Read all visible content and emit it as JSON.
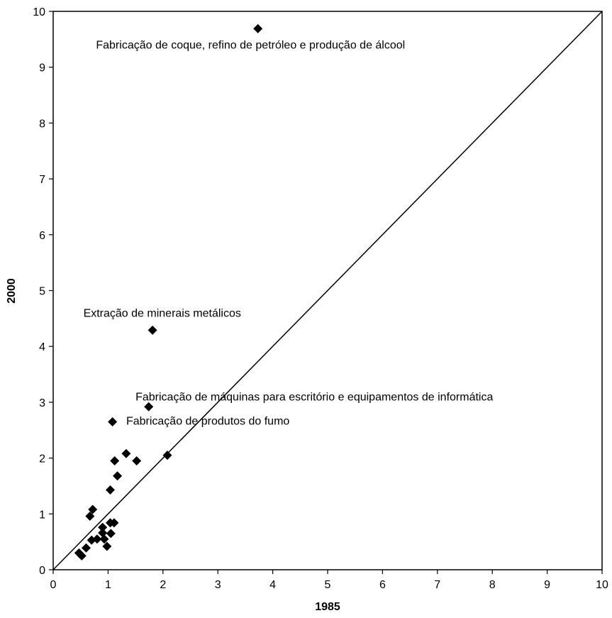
{
  "chart_data": {
    "type": "scatter",
    "xlabel": "1985",
    "ylabel": "2000",
    "xlim": [
      0,
      10
    ],
    "ylim": [
      0,
      10
    ],
    "xticks": [
      "0",
      "1",
      "2",
      "3",
      "4",
      "5",
      "6",
      "7",
      "8",
      "9",
      "10"
    ],
    "yticks": [
      "0",
      "1",
      "2",
      "3",
      "4",
      "5",
      "6",
      "7",
      "8",
      "9",
      "10"
    ],
    "grid": false,
    "reference_line": {
      "from": [
        0,
        0
      ],
      "to": [
        10,
        10
      ]
    },
    "marker": "diamond",
    "marker_color": "#000000",
    "points": [
      {
        "x": 3.73,
        "y": 9.69
      },
      {
        "x": 1.81,
        "y": 4.29
      },
      {
        "x": 1.74,
        "y": 2.92
      },
      {
        "x": 1.08,
        "y": 2.65
      },
      {
        "x": 2.08,
        "y": 2.05
      },
      {
        "x": 1.33,
        "y": 2.08
      },
      {
        "x": 1.52,
        "y": 1.95
      },
      {
        "x": 1.12,
        "y": 1.95
      },
      {
        "x": 1.17,
        "y": 1.68
      },
      {
        "x": 1.04,
        "y": 1.43
      },
      {
        "x": 0.72,
        "y": 1.08
      },
      {
        "x": 0.67,
        "y": 0.96
      },
      {
        "x": 1.11,
        "y": 0.84
      },
      {
        "x": 1.04,
        "y": 0.84
      },
      {
        "x": 0.9,
        "y": 0.76
      },
      {
        "x": 0.9,
        "y": 0.66
      },
      {
        "x": 1.05,
        "y": 0.65
      },
      {
        "x": 0.93,
        "y": 0.55
      },
      {
        "x": 0.8,
        "y": 0.55
      },
      {
        "x": 0.7,
        "y": 0.53
      },
      {
        "x": 0.98,
        "y": 0.42
      },
      {
        "x": 0.6,
        "y": 0.39
      },
      {
        "x": 0.47,
        "y": 0.3
      },
      {
        "x": 0.52,
        "y": 0.25
      }
    ],
    "annotations": [
      {
        "text": "Fabricação  de coque,  refino de petróleo e produção de álcool",
        "x": 0.78,
        "y": 9.33
      },
      {
        "text": "Extração de minerais metálicos",
        "x": 0.55,
        "y": 4.53
      },
      {
        "text": "Fabricação de máquinas para  escritório e equipamentos de informática",
        "x": 1.5,
        "y": 3.03
      },
      {
        "text": "Fabricação de produtos do fumo",
        "x": 1.33,
        "y": 2.6
      }
    ]
  }
}
